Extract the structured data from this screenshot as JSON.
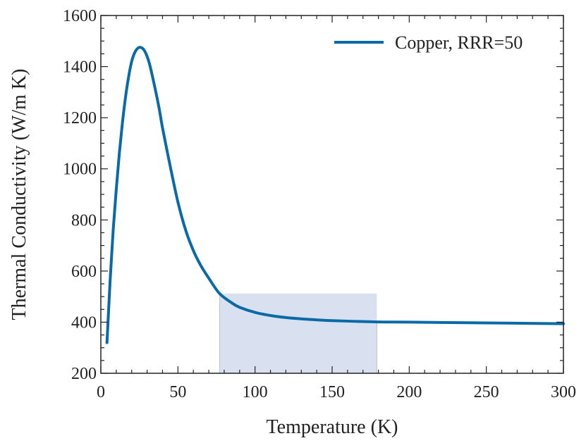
{
  "chart_data": {
    "type": "line",
    "title": "",
    "xlabel": "Temperature (K)",
    "ylabel": "Thermal Conductivity (W/m K)",
    "xlim": [
      0,
      300
    ],
    "ylim": [
      200,
      1600
    ],
    "xticks": [
      0,
      50,
      100,
      150,
      200,
      250,
      300
    ],
    "yticks": [
      200,
      400,
      600,
      800,
      1000,
      1200,
      1400,
      1600
    ],
    "grid": false,
    "legend_position": "top-right",
    "shaded_region": {
      "x_start": 77,
      "x_end": 179,
      "color": "#d9e0ef"
    },
    "series": [
      {
        "name": "Copper, RRR=50",
        "color": "#0a6aa8",
        "x": [
          4,
          6,
          8,
          10,
          12,
          14,
          16,
          18,
          20,
          22,
          24,
          26,
          28,
          30,
          32,
          35,
          38,
          40,
          45,
          50,
          55,
          60,
          65,
          70,
          77,
          85,
          90,
          100,
          110,
          120,
          130,
          150,
          180,
          200,
          250,
          300
        ],
        "y": [
          320,
          560,
          760,
          920,
          1060,
          1180,
          1280,
          1360,
          1420,
          1455,
          1472,
          1475,
          1465,
          1440,
          1400,
          1320,
          1230,
          1160,
          1010,
          870,
          760,
          680,
          620,
          572,
          512,
          475,
          458,
          438,
          426,
          418,
          413,
          406,
          401,
          400,
          397,
          394
        ]
      }
    ]
  }
}
